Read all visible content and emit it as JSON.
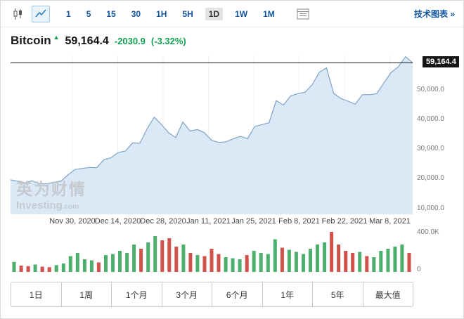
{
  "toolbar": {
    "intervals": [
      {
        "label": "1"
      },
      {
        "label": "5"
      },
      {
        "label": "15"
      },
      {
        "label": "30"
      },
      {
        "label": "1H"
      },
      {
        "label": "5H"
      },
      {
        "label": "1D",
        "selected": true
      },
      {
        "label": "1W"
      },
      {
        "label": "1M"
      }
    ],
    "tech_chart_link": "技术图表 »"
  },
  "quote": {
    "name": "Bitcoin",
    "price": "59,164.4",
    "change": "-2030.9",
    "change_percent": "(-3.32%)"
  },
  "watermark": {
    "cn": "英为财情",
    "en": "Investing",
    "en_suffix": ".com"
  },
  "range_buttons": [
    "1日",
    "1周",
    "1个月",
    "3个月",
    "6个月",
    "1年",
    "5年",
    "最大值"
  ],
  "colors": {
    "link_blue": "#1256a0",
    "green_text": "#12a152",
    "price_tag_bg": "#161616"
  },
  "chart_data": {
    "type": "area",
    "title": "Bitcoin 1D price chart",
    "ylim": [
      8000,
      61600
    ],
    "current_price": 59164.4,
    "current_price_label": "59,164.4",
    "y_ticks": [
      {
        "v": 50000,
        "label": "50,000.0"
      },
      {
        "v": 40000,
        "label": "40,000.0"
      },
      {
        "v": 30000,
        "label": "30,000.0"
      },
      {
        "v": 20000,
        "label": "20,000.0"
      },
      {
        "v": 10000,
        "label": "10,000.0"
      }
    ],
    "x_labels": [
      "Nov 30, 2020",
      "Dec 14, 2020",
      "Dec 28, 2020",
      "Jan 11, 2021",
      "Jan 25, 2021",
      "Feb 8, 2021",
      "Feb 22, 2021",
      "Mar 8, 2021"
    ],
    "prices": [
      19625,
      19202,
      18650,
      19345,
      18321,
      18264,
      18808,
      19175,
      21310,
      23132,
      23477,
      23821,
      23735,
      26437,
      27084,
      28840,
      29374,
      32127,
      31971,
      36824,
      40797,
      38356,
      35566,
      33922,
      39187,
      36069,
      36630,
      35547,
      32985,
      32259,
      32467,
      33466,
      34316,
      33533,
      37618,
      38289,
      38903,
      46374,
      44878,
      47969,
      48717,
      49199,
      51679,
      55923,
      57408,
      48824,
      47093,
      46188,
      45135,
      48378,
      48374,
      48751,
      52375,
      55888,
      57805,
      61195,
      59164
    ],
    "area_fill": "#dbe9f7",
    "line_color": "#7fa3c7",
    "current_line_color": "#1b1b1b",
    "volume": {
      "type": "bar",
      "ylim_k": [
        0,
        400
      ],
      "y_tick_labels": [
        "400.0K",
        "0"
      ],
      "values_k": [
        95,
        60,
        55,
        70,
        50,
        45,
        65,
        80,
        150,
        180,
        120,
        110,
        90,
        160,
        170,
        200,
        180,
        260,
        220,
        280,
        340,
        300,
        320,
        240,
        260,
        180,
        160,
        150,
        220,
        170,
        140,
        130,
        120,
        160,
        200,
        180,
        170,
        310,
        230,
        210,
        190,
        170,
        220,
        260,
        280,
        380,
        260,
        200,
        180,
        190,
        150,
        140,
        200,
        220,
        240,
        260,
        180
      ],
      "up_color": "#4caf6d",
      "down_color": "#d1524a"
    }
  }
}
